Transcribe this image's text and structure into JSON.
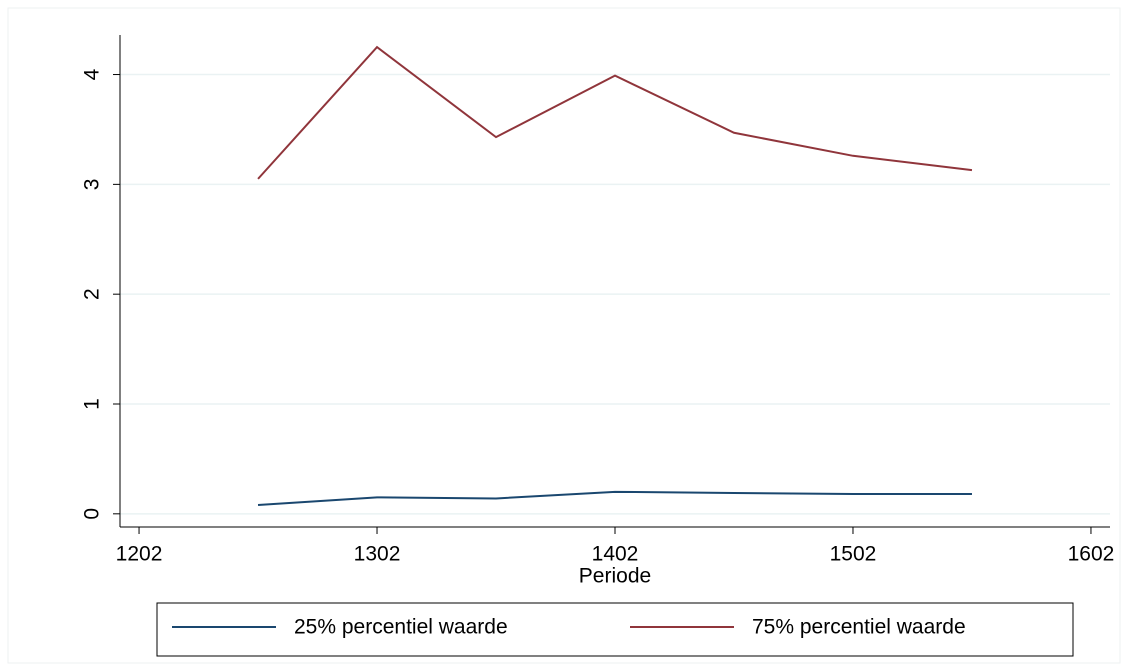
{
  "chart_data": {
    "type": "line",
    "x": [
      1252,
      1302,
      1352,
      1402,
      1452,
      1502,
      1552
    ],
    "series": [
      {
        "name": "25% percentiel waarde",
        "color": "#1a476f",
        "values": [
          0.08,
          0.15,
          0.14,
          0.2,
          0.19,
          0.18,
          0.18
        ]
      },
      {
        "name": "75% percentiel waarde",
        "color": "#90353b",
        "values": [
          3.05,
          4.25,
          3.43,
          3.99,
          3.47,
          3.26,
          3.13
        ]
      }
    ],
    "xlabel": "Periode",
    "xlim": [
      1194,
      1610
    ],
    "xticks": [
      1202,
      1302,
      1402,
      1502,
      1602
    ],
    "ylim": [
      -0.12,
      4.36
    ],
    "yticks": [
      0,
      1,
      2,
      3,
      4
    ],
    "grid": true,
    "legend": "bottom"
  }
}
